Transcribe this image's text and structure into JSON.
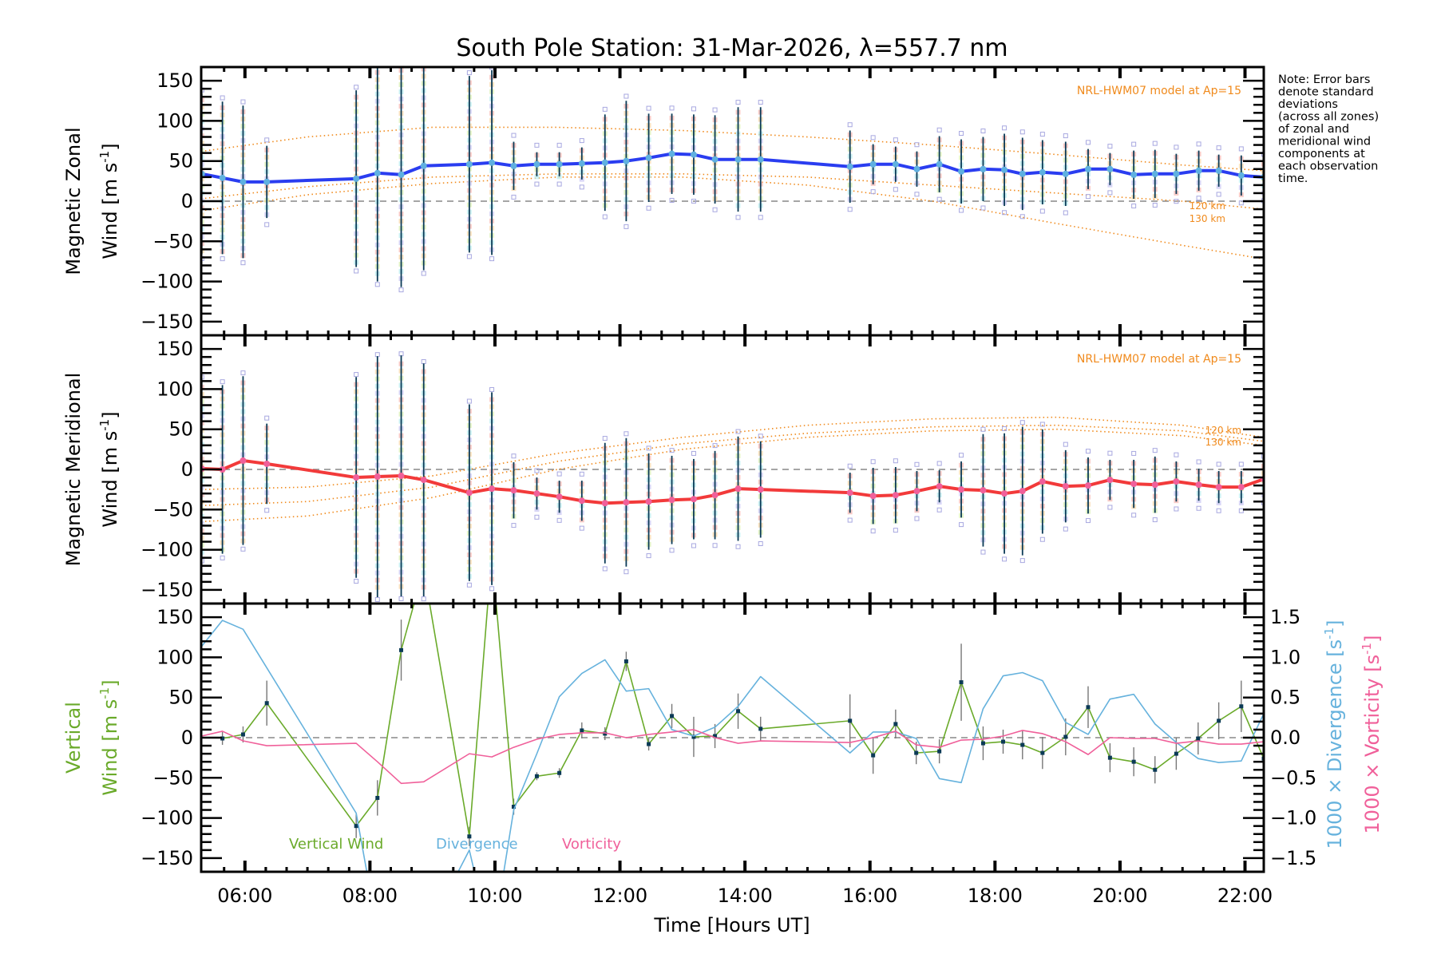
{
  "chart_data": {
    "type": "line",
    "title": "South Pole Station: 31-Mar-2026, λ=557.7 nm",
    "xlabel": "Time [Hours UT]",
    "xlim": [
      5.3,
      22.3
    ],
    "x_ticks": [
      6,
      8,
      10,
      12,
      14,
      16,
      18,
      20,
      22
    ],
    "x_tick_labels": [
      "06:00",
      "08:00",
      "10:00",
      "12:00",
      "14:00",
      "16:00",
      "18:00",
      "20:00",
      "22:00"
    ],
    "note": [
      "Note: Error bars",
      "denote standard",
      "deviations",
      "(across all zones)",
      "of zonal and",
      "meridional wind",
      "components at",
      "each observation",
      "time."
    ],
    "panels": [
      {
        "id": "zonal",
        "ylabel_line1": "Magnetic Zonal",
        "ylabel_line2": "Wind [m s",
        "ylabel_sup": "-1",
        "ylabel_close": "]",
        "ylim": [
          -167,
          167
        ],
        "y_ticks": [
          150,
          100,
          50,
          0,
          -50,
          -100,
          -150
        ],
        "y_tick_labels": [
          "150",
          "100",
          "50",
          "0",
          "-50",
          "-100",
          "-150"
        ],
        "model_label": "NRL-HWM07 model at Ap=15",
        "model_curve_labels": [
          "120 km",
          "130 km"
        ],
        "series": [
          {
            "name": "Zonal wind",
            "color": "#2a3df0",
            "x": [
              5.31,
              5.64,
              5.97,
              6.35,
              7.78,
              8.12,
              8.5,
              8.86,
              9.59,
              9.95,
              10.3,
              10.67,
              11.03,
              11.39,
              11.76,
              12.1,
              12.46,
              12.83,
              13.18,
              13.52,
              13.89,
              14.25,
              15.68,
              16.05,
              16.41,
              16.75,
              17.11,
              17.46,
              17.81,
              18.15,
              18.44,
              18.76,
              19.13,
              19.49,
              19.84,
              20.22,
              20.56,
              20.9,
              21.26,
              21.58,
              21.94,
              22.3
            ],
            "y": [
              34,
              29,
              24,
              24,
              28,
              35,
              33,
              44,
              46,
              48,
              44,
              46,
              46,
              47,
              48,
              50,
              54,
              59,
              58,
              52,
              52,
              52,
              43,
              46,
              46,
              40,
              46,
              37,
              40,
              39,
              34,
              36,
              34,
              40,
              40,
              33,
              34,
              34,
              38,
              38,
              32,
              30
            ],
            "err": [
              100,
              95,
              95,
              45,
              110,
              135,
              140,
              130,
              110,
              115,
              30,
              15,
              15,
              20,
              60,
              75,
              55,
              50,
              50,
              55,
              65,
              65,
              45,
              25,
              22,
              22,
              35,
              40,
              40,
              45,
              45,
              40,
              40,
              25,
              20,
              30,
              30,
              25,
              25,
              20,
              25,
              20
            ]
          }
        ],
        "model_curves": [
          {
            "name": "HWM07 curve A",
            "x": [
              5.3,
              7,
              9,
              11,
              13,
              15,
              17,
              19,
              21,
              22.3
            ],
            "y": [
              62,
              80,
              92,
              92,
              88,
              80,
              70,
              58,
              45,
              38
            ]
          },
          {
            "name": "HWM07 120 km",
            "x": [
              5.3,
              7,
              9,
              11,
              13,
              15,
              17,
              19,
              21,
              22.3
            ],
            "y": [
              3,
              18,
              30,
              34,
              34,
              30,
              20,
              10,
              0,
              -10
            ]
          },
          {
            "name": "HWM07 130 km",
            "x": [
              5.3,
              7,
              9,
              11,
              13,
              15,
              17,
              19,
              21,
              22.3
            ],
            "y": [
              -12,
              8,
              22,
              30,
              30,
              20,
              0,
              -28,
              -55,
              -72
            ]
          }
        ]
      },
      {
        "id": "meridional",
        "ylabel_line1": "Magnetic Meridional",
        "ylabel_line2": "Wind [m s",
        "ylabel_sup": "-1",
        "ylabel_close": "]",
        "ylim": [
          -167,
          167
        ],
        "y_ticks": [
          150,
          100,
          50,
          0,
          -50,
          -100,
          -150
        ],
        "y_tick_labels": [
          "150",
          "100",
          "50",
          "0",
          "-50",
          "-100",
          "-150"
        ],
        "model_label": "NRL-HWM07 model at Ap=15",
        "model_curve_labels": [
          "120 km",
          "130 km"
        ],
        "series": [
          {
            "name": "Meridional wind",
            "color": "#f23a3a",
            "x": [
              5.31,
              5.64,
              5.97,
              6.35,
              7.78,
              8.12,
              8.5,
              8.86,
              9.59,
              9.95,
              10.3,
              10.67,
              11.03,
              11.39,
              11.76,
              12.1,
              12.46,
              12.83,
              13.18,
              13.52,
              13.89,
              14.25,
              15.68,
              16.05,
              16.41,
              16.75,
              17.11,
              17.46,
              17.81,
              18.15,
              18.44,
              18.76,
              19.13,
              19.49,
              19.84,
              20.22,
              20.56,
              20.9,
              21.26,
              21.58,
              21.94,
              22.3
            ],
            "y": [
              1,
              0,
              11,
              7,
              -10,
              -9,
              -8,
              -13,
              -29,
              -24,
              -26,
              -30,
              -34,
              -39,
              -42,
              -41,
              -40,
              -38,
              -37,
              -32,
              -24,
              -25,
              -29,
              -33,
              -32,
              -27,
              -21,
              -25,
              -26,
              -30,
              -27,
              -15,
              -21,
              -20,
              -13,
              -18,
              -19,
              -15,
              -19,
              -22,
              -22,
              -12
            ],
            "err": [
              110,
              105,
              105,
              50,
              125,
              150,
              150,
              145,
              110,
              120,
              35,
              20,
              20,
              25,
              75,
              80,
              60,
              55,
              50,
              55,
              65,
              60,
              25,
              35,
              35,
              25,
              20,
              35,
              70,
              75,
              80,
              65,
              45,
              35,
              25,
              30,
              35,
              25,
              20,
              20,
              20,
              20
            ]
          }
        ],
        "model_curves": [
          {
            "name": "HWM07 curve A",
            "x": [
              5.3,
              7,
              9,
              11,
              13,
              15,
              17,
              19,
              21,
              22.3
            ],
            "y": [
              -25,
              -22,
              -8,
              20,
              40,
              55,
              63,
              65,
              55,
              40
            ]
          },
          {
            "name": "HWM07 120 km",
            "x": [
              5.3,
              7,
              9,
              11,
              13,
              15,
              17,
              19,
              21,
              22.3
            ],
            "y": [
              -45,
              -40,
              -22,
              10,
              32,
              45,
              53,
              55,
              48,
              35
            ]
          },
          {
            "name": "HWM07 130 km",
            "x": [
              5.3,
              7,
              9,
              11,
              13,
              15,
              17,
              19,
              21,
              22.3
            ],
            "y": [
              -65,
              -58,
              -35,
              0,
              25,
              40,
              48,
              50,
              42,
              30
            ]
          }
        ]
      },
      {
        "id": "vertical",
        "ylabel_line1": "Vertical",
        "ylabel_line2": "Wind [m s",
        "ylabel_sup": "-1",
        "ylabel_close": "]",
        "ylim": [
          -167,
          167
        ],
        "y_ticks": [
          150,
          100,
          50,
          0,
          -50,
          -100,
          -150
        ],
        "y_tick_labels": [
          "150",
          "100",
          "50",
          "0",
          "-50",
          "-100",
          "-150"
        ],
        "y2lim": [
          -1.67,
          1.67
        ],
        "y2_ticks": [
          1.5,
          1.0,
          0.5,
          0.0,
          -0.5,
          -1.0,
          -1.5
        ],
        "y2_tick_labels": [
          "1.5",
          "1.0",
          "0.5",
          "0.0",
          "-0.5",
          "-1.0",
          "-1.5"
        ],
        "y2label_div": "1000 × Divergence [s",
        "y2label_vort": "1000 × Vorticity [s",
        "y2label_sup": "-1",
        "y2label_close": "]",
        "legend": [
          {
            "label": "Vertical Wind",
            "color": "#6aaa2a"
          },
          {
            "label": "Divergence",
            "color": "#66b2dd"
          },
          {
            "label": "Vorticity",
            "color": "#f0609a"
          }
        ],
        "series": [
          {
            "name": "Vertical Wind",
            "color": "#6aaa2a",
            "axis": "left",
            "x": [
              5.64,
              5.97,
              6.35,
              7.78,
              8.12,
              8.5,
              8.86,
              9.59,
              9.95,
              10.3,
              10.67,
              11.03,
              11.39,
              11.76,
              12.1,
              12.46,
              12.83,
              13.18,
              13.52,
              13.89,
              14.25,
              15.68,
              16.05,
              16.41,
              16.74,
              17.11,
              17.46,
              17.81,
              18.13,
              18.44,
              18.76,
              19.13,
              19.49,
              19.84,
              20.22,
              20.56,
              20.9,
              21.25,
              21.58,
              21.94,
              22.3
            ],
            "y": [
              -1,
              4,
              43,
              -110,
              -75,
              109,
              210,
              -123,
              230,
              -86,
              -48,
              -44,
              9,
              5,
              95,
              -8,
              27,
              1,
              2,
              33,
              11,
              21,
              -22,
              17,
              -19,
              -17,
              69,
              -7,
              -5,
              -9,
              -19,
              1,
              38,
              -25,
              -30,
              -40,
              -20,
              -1,
              21,
              39,
              -26
            ],
            "err": [
              8,
              10,
              28,
              15,
              22,
              38,
              30,
              12,
              30,
              10,
              5,
              6,
              10,
              8,
              12,
              8,
              15,
              25,
              15,
              22,
              15,
              33,
              23,
              18,
              14,
              15,
              48,
              21,
              15,
              18,
              20,
              23,
              26,
              18,
              18,
              17,
              20,
              20,
              23,
              32,
              20
            ]
          },
          {
            "name": "Divergence",
            "color": "#66b2dd",
            "axis": "right",
            "x": [
              5.31,
              5.64,
              5.97,
              7.78,
              8.12,
              8.5,
              8.86,
              9.59,
              9.95,
              10.3,
              10.67,
              11.03,
              11.39,
              11.76,
              12.1,
              12.46,
              12.83,
              13.18,
              13.52,
              13.89,
              14.25,
              15.68,
              16.05,
              16.41,
              16.74,
              17.11,
              17.46,
              17.81,
              18.13,
              18.44,
              18.76,
              19.13,
              19.49,
              19.84,
              20.22,
              20.56,
              20.9,
              21.25,
              21.58,
              21.94,
              22.3
            ],
            "y": [
              1.14,
              1.46,
              1.35,
              -0.94,
              -2.4,
              -3.0,
              -2.5,
              -1.4,
              -2.6,
              -0.9,
              -0.2,
              0.51,
              0.8,
              0.97,
              0.58,
              0.61,
              0.1,
              0.02,
              0.13,
              0.39,
              0.76,
              -0.19,
              0.07,
              0.07,
              -0.01,
              -0.51,
              -0.56,
              0.36,
              0.77,
              0.81,
              0.71,
              0.19,
              0.04,
              0.48,
              0.54,
              0.17,
              -0.06,
              -0.26,
              -0.31,
              -0.29,
              0.3
            ]
          },
          {
            "name": "Vorticity",
            "color": "#f0609a",
            "axis": "right",
            "x": [
              5.31,
              5.64,
              5.97,
              6.35,
              7.78,
              8.12,
              8.5,
              8.86,
              9.59,
              9.95,
              10.3,
              10.67,
              11.03,
              11.39,
              11.76,
              12.1,
              12.46,
              12.83,
              13.18,
              13.52,
              13.89,
              14.25,
              15.68,
              16.05,
              16.41,
              16.74,
              17.11,
              17.46,
              17.81,
              18.13,
              18.44,
              18.76,
              19.13,
              19.49,
              19.84,
              20.22,
              20.56,
              20.9,
              21.25,
              21.58,
              21.94,
              22.3
            ],
            "y": [
              0.02,
              0.08,
              -0.04,
              -0.1,
              -0.07,
              -0.3,
              -0.57,
              -0.55,
              -0.2,
              -0.24,
              -0.12,
              -0.02,
              0.04,
              0.06,
              0.06,
              0.0,
              0.04,
              0.07,
              0.1,
              0.0,
              -0.07,
              -0.04,
              -0.06,
              0.0,
              0.08,
              -0.09,
              -0.12,
              -0.03,
              -0.02,
              0.02,
              0.09,
              0.05,
              -0.05,
              -0.21,
              0.0,
              -0.01,
              -0.01,
              -0.07,
              -0.04,
              -0.08,
              -0.08,
              -0.05
            ]
          }
        ]
      }
    ]
  }
}
